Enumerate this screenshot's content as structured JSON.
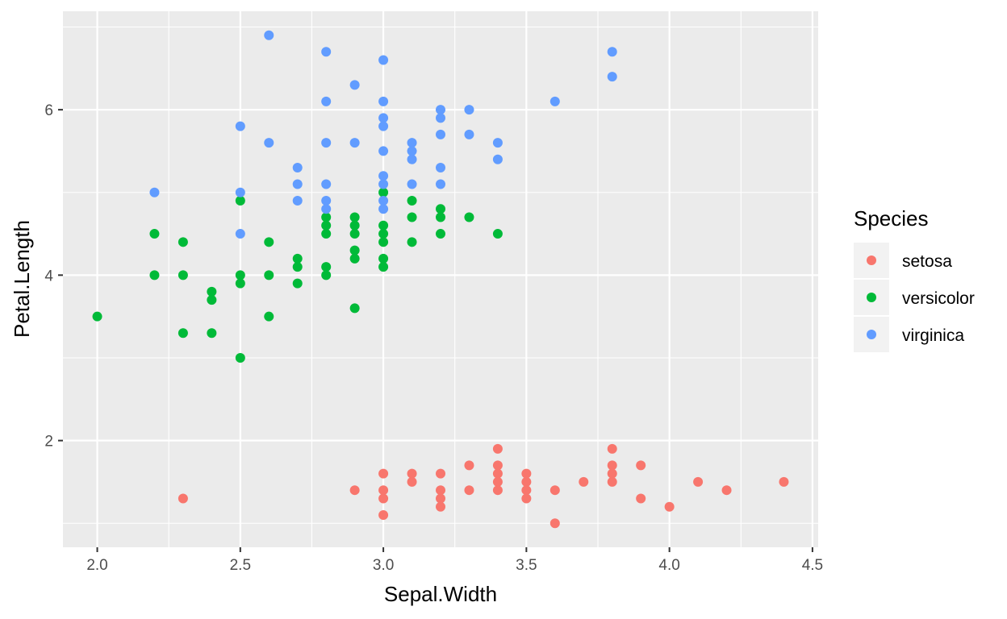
{
  "chart_data": {
    "type": "scatter",
    "xlabel": "Sepal.Width",
    "ylabel": "Petal.Length",
    "xlim": [
      1.88,
      4.52
    ],
    "ylim": [
      0.71,
      7.19
    ],
    "x_ticks": [
      2.0,
      2.5,
      3.0,
      3.5,
      4.0,
      4.5
    ],
    "x_tick_labels": [
      "2.0",
      "2.5",
      "3.0",
      "3.5",
      "4.0",
      "4.5"
    ],
    "y_ticks": [
      2,
      4,
      6
    ],
    "y_tick_labels": [
      "2",
      "4",
      "6"
    ],
    "grid": true,
    "legend": {
      "title": "Species",
      "position": "right"
    },
    "panel_background": "#EBEBEB",
    "series": [
      {
        "name": "setosa",
        "color": "#F8766D",
        "points": [
          [
            2.3,
            1.3
          ],
          [
            2.9,
            1.4
          ],
          [
            3.0,
            1.6
          ],
          [
            3.0,
            1.4
          ],
          [
            3.0,
            1.3
          ],
          [
            3.0,
            1.1
          ],
          [
            3.1,
            1.6
          ],
          [
            3.1,
            1.5
          ],
          [
            3.2,
            1.6
          ],
          [
            3.2,
            1.4
          ],
          [
            3.2,
            1.3
          ],
          [
            3.2,
            1.2
          ],
          [
            3.3,
            1.7
          ],
          [
            3.3,
            1.4
          ],
          [
            3.4,
            1.9
          ],
          [
            3.4,
            1.7
          ],
          [
            3.4,
            1.6
          ],
          [
            3.4,
            1.5
          ],
          [
            3.4,
            1.4
          ],
          [
            3.5,
            1.6
          ],
          [
            3.5,
            1.5
          ],
          [
            3.5,
            1.4
          ],
          [
            3.5,
            1.3
          ],
          [
            3.6,
            1.4
          ],
          [
            3.6,
            1.0
          ],
          [
            3.7,
            1.5
          ],
          [
            3.8,
            1.9
          ],
          [
            3.8,
            1.7
          ],
          [
            3.8,
            1.6
          ],
          [
            3.8,
            1.5
          ],
          [
            3.9,
            1.7
          ],
          [
            3.9,
            1.3
          ],
          [
            4.0,
            1.2
          ],
          [
            4.1,
            1.5
          ],
          [
            4.2,
            1.4
          ],
          [
            4.4,
            1.5
          ]
        ]
      },
      {
        "name": "versicolor",
        "color": "#00BA38",
        "points": [
          [
            2.0,
            3.5
          ],
          [
            2.2,
            4.5
          ],
          [
            2.2,
            4.0
          ],
          [
            2.3,
            4.4
          ],
          [
            2.3,
            4.0
          ],
          [
            2.3,
            3.3
          ],
          [
            2.4,
            3.8
          ],
          [
            2.4,
            3.7
          ],
          [
            2.4,
            3.3
          ],
          [
            2.5,
            4.9
          ],
          [
            2.5,
            4.0
          ],
          [
            2.5,
            3.9
          ],
          [
            2.5,
            3.0
          ],
          [
            2.6,
            4.4
          ],
          [
            2.6,
            4.0
          ],
          [
            2.6,
            3.5
          ],
          [
            2.7,
            4.2
          ],
          [
            2.7,
            4.1
          ],
          [
            2.7,
            3.9
          ],
          [
            2.8,
            4.7
          ],
          [
            2.8,
            4.6
          ],
          [
            2.8,
            4.5
          ],
          [
            2.8,
            4.1
          ],
          [
            2.8,
            4.0
          ],
          [
            2.9,
            4.7
          ],
          [
            2.9,
            4.6
          ],
          [
            2.9,
            4.5
          ],
          [
            2.9,
            4.3
          ],
          [
            2.9,
            4.2
          ],
          [
            2.9,
            3.6
          ],
          [
            3.0,
            5.0
          ],
          [
            3.0,
            4.6
          ],
          [
            3.0,
            4.5
          ],
          [
            3.0,
            4.4
          ],
          [
            3.0,
            4.2
          ],
          [
            3.0,
            4.1
          ],
          [
            3.1,
            4.9
          ],
          [
            3.1,
            4.7
          ],
          [
            3.1,
            4.4
          ],
          [
            3.2,
            4.8
          ],
          [
            3.2,
            4.7
          ],
          [
            3.2,
            4.5
          ],
          [
            3.3,
            4.7
          ],
          [
            3.4,
            4.5
          ]
        ]
      },
      {
        "name": "virginica",
        "color": "#619CFF",
        "points": [
          [
            2.2,
            5.0
          ],
          [
            2.5,
            5.8
          ],
          [
            2.5,
            5.0
          ],
          [
            2.5,
            4.5
          ],
          [
            2.6,
            6.9
          ],
          [
            2.6,
            5.6
          ],
          [
            2.7,
            5.3
          ],
          [
            2.7,
            5.1
          ],
          [
            2.7,
            4.9
          ],
          [
            2.8,
            6.7
          ],
          [
            2.8,
            6.1
          ],
          [
            2.8,
            5.6
          ],
          [
            2.8,
            5.1
          ],
          [
            2.8,
            4.9
          ],
          [
            2.8,
            4.8
          ],
          [
            2.9,
            6.3
          ],
          [
            2.9,
            5.6
          ],
          [
            3.0,
            6.6
          ],
          [
            3.0,
            6.1
          ],
          [
            3.0,
            5.9
          ],
          [
            3.0,
            5.8
          ],
          [
            3.0,
            5.5
          ],
          [
            3.0,
            5.2
          ],
          [
            3.0,
            5.1
          ],
          [
            3.0,
            4.9
          ],
          [
            3.0,
            4.8
          ],
          [
            3.1,
            5.6
          ],
          [
            3.1,
            5.5
          ],
          [
            3.1,
            5.4
          ],
          [
            3.1,
            5.1
          ],
          [
            3.2,
            6.0
          ],
          [
            3.2,
            5.9
          ],
          [
            3.2,
            5.7
          ],
          [
            3.2,
            5.3
          ],
          [
            3.2,
            5.1
          ],
          [
            3.3,
            6.0
          ],
          [
            3.3,
            5.7
          ],
          [
            3.4,
            5.6
          ],
          [
            3.4,
            5.4
          ],
          [
            3.6,
            6.1
          ],
          [
            3.8,
            6.7
          ],
          [
            3.8,
            6.4
          ]
        ]
      }
    ]
  }
}
